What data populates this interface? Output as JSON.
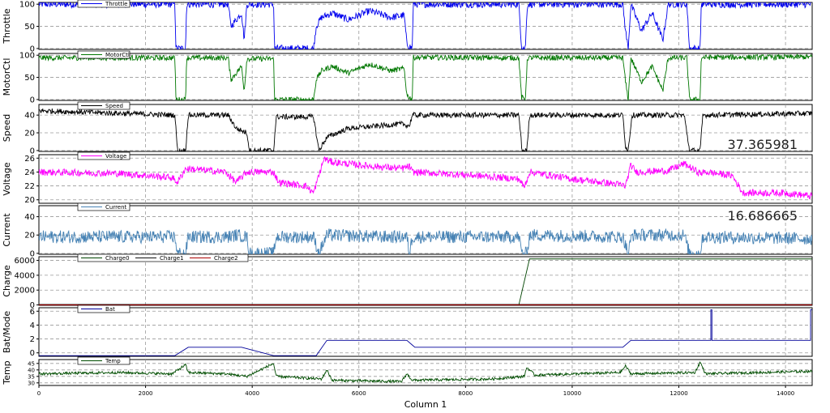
{
  "colors": {
    "throttle": "#0000ee",
    "motorctl": "#007700",
    "speed": "#000000",
    "voltage": "#ff00ff",
    "current": "#4682b4",
    "charge0": "#004400",
    "charge1": "#111111",
    "charge2": "#aa0000",
    "bat": "#000099",
    "temp": "#004d00",
    "grid": "#9a9a9a",
    "axis": "#000000",
    "background": "#ffffff"
  },
  "chart_data": {
    "type": "line",
    "x_axis": {
      "label": "Column 1",
      "xlim": [
        0,
        14500
      ],
      "ticks": [
        0,
        2000,
        4000,
        6000,
        8000,
        10000,
        12000,
        14000
      ],
      "tick_labels": [
        "0",
        "2000",
        "4000",
        "6000",
        "8000",
        "10000",
        "12000",
        "14000"
      ]
    },
    "panels": [
      {
        "id": "throttle",
        "ylabel": "Throttle",
        "ylim": [
          -2,
          104
        ],
        "ticks": [
          0,
          50,
          100
        ],
        "tick_labels": [
          "0",
          "50",
          "100"
        ],
        "legend": [
          "Throttle"
        ],
        "readout": "",
        "series": [
          {
            "name": "Throttle",
            "color_key": "throttle",
            "x": [
              0,
              2550,
              2570,
              2750,
              2770,
              3550,
              3600,
              3800,
              3850,
              3900,
              4400,
              4420,
              5150,
              5200,
              5300,
              5500,
              5800,
              6200,
              6600,
              6850,
              6900,
              7000,
              7020,
              9000,
              9050,
              9120,
              9160,
              10950,
              11000,
              11050,
              11100,
              11300,
              11500,
              11700,
              11800,
              12150,
              12200,
              12400,
              12420,
              14500
            ],
            "y": [
              100,
              100,
              0,
              0,
              100,
              100,
              50,
              80,
              20,
              100,
              100,
              0,
              0,
              50,
              70,
              80,
              65,
              85,
              70,
              75,
              10,
              0,
              100,
              100,
              5,
              0,
              100,
              100,
              40,
              0,
              100,
              40,
              80,
              20,
              100,
              100,
              0,
              0,
              100,
              100
            ],
            "noise": 8
          }
        ]
      },
      {
        "id": "motorctl",
        "ylabel": "MotorCtl",
        "ylim": [
          -2,
          104
        ],
        "ticks": [
          0,
          50,
          100
        ],
        "tick_labels": [
          "0",
          "50",
          "100"
        ],
        "legend": [
          "MotorCtl"
        ],
        "readout": "",
        "series": [
          {
            "name": "MotorCtl",
            "color_key": "motorctl",
            "x": [
              0,
              2550,
              2570,
              2750,
              2770,
              3550,
              3600,
              3800,
              3850,
              3900,
              4400,
              4420,
              5150,
              5200,
              5300,
              5500,
              5800,
              6200,
              6600,
              6850,
              6900,
              7000,
              7020,
              9000,
              9050,
              9120,
              9160,
              10950,
              11000,
              11050,
              11100,
              11300,
              11500,
              11700,
              11800,
              12150,
              12200,
              12400,
              12420,
              14500
            ],
            "y": [
              94,
              94,
              0,
              0,
              94,
              94,
              45,
              75,
              20,
              92,
              92,
              0,
              0,
              45,
              65,
              75,
              60,
              80,
              65,
              70,
              10,
              0,
              95,
              94,
              5,
              0,
              94,
              94,
              40,
              0,
              94,
              40,
              75,
              20,
              94,
              94,
              0,
              0,
              95,
              96
            ],
            "noise": 6
          }
        ]
      },
      {
        "id": "speed",
        "ylabel": "Speed",
        "ylim": [
          -1,
          52
        ],
        "ticks": [
          0,
          20,
          40
        ],
        "tick_labels": [
          "0",
          "20",
          "40"
        ],
        "legend": [
          "Speed"
        ],
        "readout": "37.365981",
        "series": [
          {
            "name": "Speed",
            "color_key": "speed",
            "x": [
              0,
              2550,
              2600,
              2750,
              2800,
              3550,
              3700,
              3900,
              3950,
              4400,
              4450,
              5150,
              5250,
              5400,
              5800,
              6400,
              6800,
              6950,
              7000,
              9000,
              9060,
              9150,
              9200,
              10950,
              11000,
              11050,
              11120,
              12100,
              12200,
              12400,
              12450,
              14500
            ],
            "y": [
              45,
              40,
              0,
              0,
              40,
              40,
              25,
              20,
              0,
              0,
              38,
              38,
              0,
              15,
              25,
              28,
              30,
              28,
              40,
              40,
              0,
              0,
              40,
              40,
              5,
              0,
              40,
              40,
              0,
              0,
              40,
              42
            ],
            "noise": 3
          }
        ]
      },
      {
        "id": "voltage",
        "ylabel": "Voltage",
        "ylim": [
          19.5,
          26.5
        ],
        "ticks": [
          20,
          22,
          24,
          26
        ],
        "tick_labels": [
          "20",
          "22",
          "24",
          "26"
        ],
        "legend": [
          "Voltage"
        ],
        "readout": "",
        "series": [
          {
            "name": "Voltage",
            "color_key": "voltage",
            "x": [
              0,
              1500,
              2500,
              2600,
              2750,
              3500,
              3700,
              3900,
              4400,
              4500,
              5000,
              5150,
              5350,
              5450,
              6000,
              6800,
              6950,
              7000,
              8000,
              9000,
              9100,
              9200,
              10000,
              10800,
              11000,
              11100,
              11200,
              11800,
              12100,
              12400,
              12500,
              13000,
              13200,
              14000,
              14500
            ],
            "y": [
              24,
              23.8,
              23.2,
              22.5,
              24.5,
              24,
              22.5,
              24,
              24,
              22.5,
              22,
              21,
              26,
              25.5,
              25,
              24.5,
              24.8,
              24,
              23.6,
              23,
              21.8,
              24,
              23,
              22.3,
              22,
              25,
              24,
              24.2,
              25.2,
              23.8,
              24,
              23.5,
              21,
              21,
              20.5
            ],
            "noise": 0.5
          }
        ]
      },
      {
        "id": "current",
        "ylabel": "Current",
        "ylim": [
          -1,
          52
        ],
        "ticks": [
          0,
          20,
          40
        ],
        "tick_labels": [
          "0",
          "20",
          "40"
        ],
        "legend": [
          "Current"
        ],
        "readout": "16.686665",
        "series": [
          {
            "name": "Current",
            "color_key": "current",
            "x": [
              0,
              2550,
              2600,
              2750,
              2800,
              3550,
              3700,
              3900,
              3950,
              4400,
              4450,
              5150,
              5250,
              5400,
              6500,
              6900,
              6950,
              7000,
              9000,
              9060,
              9150,
              9200,
              10950,
              11050,
              11120,
              12100,
              12200,
              12400,
              12450,
              14500
            ],
            "y": [
              18,
              18,
              0,
              0,
              18,
              18,
              20,
              18,
              0,
              0,
              18,
              18,
              0,
              20,
              18,
              18,
              0,
              18,
              18,
              0,
              0,
              20,
              18,
              0,
              20,
              20,
              0,
              0,
              18,
              16
            ],
            "noise": 7
          }
        ]
      },
      {
        "id": "charge",
        "ylabel": "Charge",
        "ylim": [
          -50,
          6500
        ],
        "ticks": [
          0,
          2000,
          4000,
          6000
        ],
        "tick_labels": [
          "0",
          "2000",
          "4000",
          "6000"
        ],
        "legend": [
          "Charge0",
          "Charge1",
          "Charge2"
        ],
        "readout": "",
        "series": [
          {
            "name": "Charge0",
            "color_key": "charge0",
            "x": [
              0,
              9000,
              9080,
              9200,
              14500
            ],
            "y": [
              0,
              0,
              2500,
              6200,
              6200
            ],
            "noise": 0
          },
          {
            "name": "Charge1",
            "color_key": "charge1",
            "x": [
              0,
              14500
            ],
            "y": [
              50,
              50
            ],
            "noise": 0
          },
          {
            "name": "Charge2",
            "color_key": "charge2",
            "x": [
              0,
              14500
            ],
            "y": [
              0,
              0
            ],
            "noise": 0
          }
        ]
      },
      {
        "id": "bat",
        "ylabel": "Bat/Mode",
        "ylim": [
          -0.5,
          6.5
        ],
        "ticks": [
          0,
          2,
          4,
          6
        ],
        "tick_labels": [
          "0",
          "2",
          "4",
          "6"
        ],
        "legend": [
          "Bat"
        ],
        "readout": "",
        "series": [
          {
            "name": "Bat",
            "color_key": "bat",
            "x": [
              0,
              2550,
              2800,
              3800,
              4400,
              5200,
              5400,
              6900,
              7050,
              10950,
              11100,
              12600,
              12600,
              12620,
              12620,
              14470,
              14470,
              14500
            ],
            "y": [
              -0.4,
              -0.4,
              0.8,
              0.8,
              -0.4,
              -0.4,
              1.8,
              1.8,
              0.8,
              0.8,
              1.8,
              1.8,
              6.2,
              6.2,
              1.8,
              1.8,
              6.2,
              6.2
            ],
            "noise": 0
          }
        ]
      },
      {
        "id": "temp",
        "ylabel": "Temp",
        "ylim": [
          28,
          48
        ],
        "ticks": [
          30,
          35,
          40,
          45
        ],
        "tick_labels": [
          "30",
          "35",
          "40",
          "45"
        ],
        "legend": [
          "Temp"
        ],
        "readout": "",
        "series": [
          {
            "name": "Temp",
            "color_key": "temp",
            "x": [
              0,
              1500,
              2500,
              2750,
              2800,
              3500,
              3900,
              4400,
              4450,
              5300,
              5400,
              5500,
              6800,
              6900,
              7000,
              8500,
              9100,
              9150,
              9300,
              10900,
              11000,
              11100,
              12300,
              12400,
              12500,
              13500,
              14500
            ],
            "y": [
              37,
              38,
              37,
              44,
              38,
              37,
              35,
              45,
              35,
              33,
              40,
              32,
              31,
              37,
              32,
              33,
              35,
              42,
              36,
              38,
              43,
              37,
              38,
              46,
              37,
              38,
              39
            ],
            "noise": 1
          }
        ]
      }
    ]
  }
}
